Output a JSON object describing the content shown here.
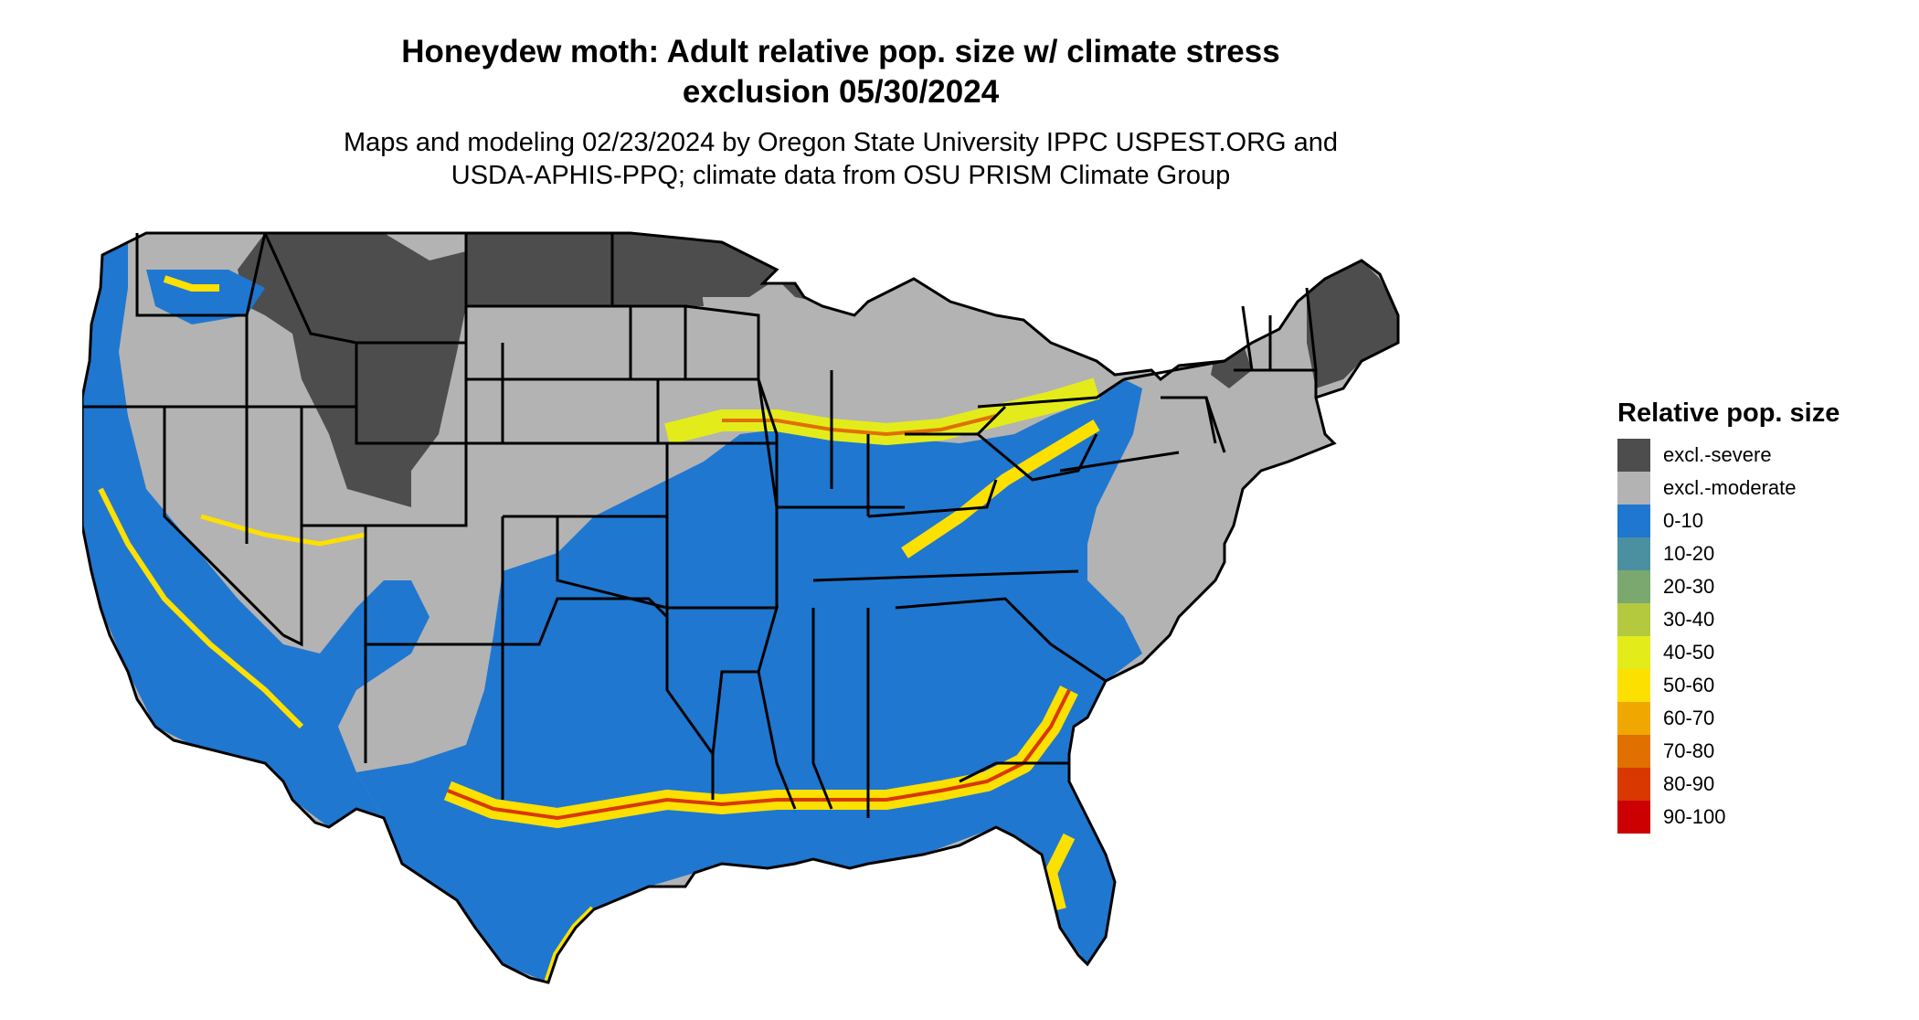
{
  "title_line1": "Honeydew moth: Adult relative pop. size w/ climate stress",
  "title_line2": "exclusion 05/30/2024",
  "subtitle_line1": "Maps and modeling 02/23/2024 by Oregon State University IPPC USPEST.ORG and",
  "subtitle_line2": "USDA-APHIS-PPQ; climate data from OSU PRISM Climate Group",
  "legend": {
    "title": "Relative pop. size",
    "items": [
      {
        "label": "excl.-severe",
        "color": "#4d4d4d"
      },
      {
        "label": "excl.-moderate",
        "color": "#b3b3b3"
      },
      {
        "label": "0-10",
        "color": "#1f77d0"
      },
      {
        "label": "10-20",
        "color": "#4a90a0"
      },
      {
        "label": "20-30",
        "color": "#7aa86f"
      },
      {
        "label": "30-40",
        "color": "#b4c93e"
      },
      {
        "label": "40-50",
        "color": "#e3ec1a"
      },
      {
        "label": "50-60",
        "color": "#fce000"
      },
      {
        "label": "60-70",
        "color": "#f0a800"
      },
      {
        "label": "70-80",
        "color": "#e07000"
      },
      {
        "label": "80-90",
        "color": "#d93800"
      },
      {
        "label": "90-100",
        "color": "#cc0000"
      }
    ]
  }
}
